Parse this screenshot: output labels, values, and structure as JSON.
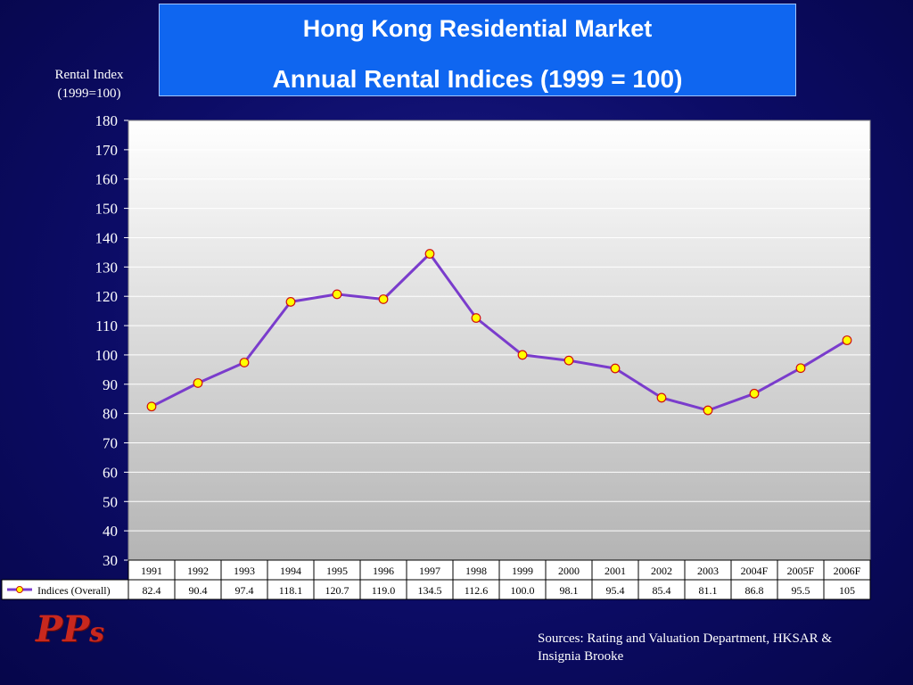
{
  "slide": {
    "title_line1": "Hong Kong Residential Market",
    "title_line2": "Annual Rental Indices  (1999 = 100)",
    "source_line1": "Sources: Rating and Valuation Department, HKSAR &",
    "source_line2": "Insignia Brooke",
    "logo_text": "PPs"
  },
  "colors": {
    "background": "#0c0c66",
    "title_box": "#0f66f0",
    "series_line": "#7a3ccc",
    "marker_fill": "#ffff00",
    "marker_stroke": "#d01010"
  },
  "chart_data": {
    "type": "line",
    "title": "Annual Rental Indices  (1999 = 100)",
    "ylabel_line1": "Rental Index",
    "ylabel_line2": "(1999=100)",
    "ylim": [
      30,
      180
    ],
    "yticks": [
      30,
      40,
      50,
      60,
      70,
      80,
      90,
      100,
      110,
      120,
      130,
      140,
      150,
      160,
      170,
      180
    ],
    "grid": true,
    "categories": [
      "1991",
      "1992",
      "1993",
      "1994",
      "1995",
      "1996",
      "1997",
      "1998",
      "1999",
      "2000",
      "2001",
      "2002",
      "2003",
      "2004F",
      "2005F",
      "2006F"
    ],
    "series": [
      {
        "name": "Indices (Overall)",
        "values": [
          82.4,
          90.4,
          97.4,
          118.1,
          120.7,
          119.0,
          134.5,
          112.6,
          100.0,
          98.1,
          95.4,
          85.4,
          81.1,
          86.8,
          95.5,
          105
        ],
        "labels": [
          "82.4",
          "90.4",
          "97.4",
          "118.1",
          "120.7",
          "119.0",
          "134.5",
          "112.6",
          "100.0",
          "98.1",
          "95.4",
          "85.4",
          "81.1",
          "86.8",
          "95.5",
          "105"
        ]
      }
    ],
    "data_table": true
  }
}
